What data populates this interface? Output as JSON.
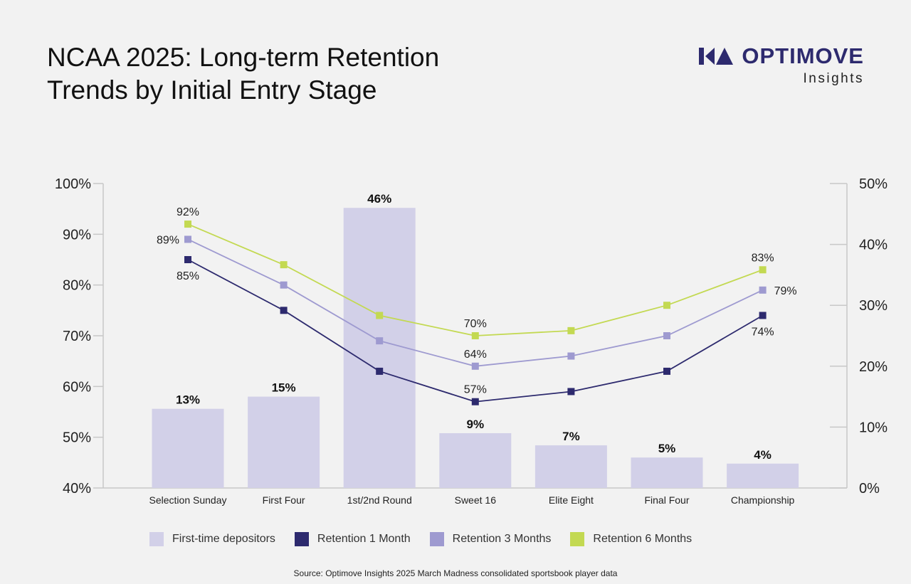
{
  "header": {
    "title_line1": "NCAA 2025: Long-term Retention",
    "title_line2": "Trends by Initial Entry Stage"
  },
  "logo": {
    "brand": "OPTIMOVE",
    "sub": "Insights"
  },
  "colors": {
    "bar": "#d2d0e8",
    "retention_1m": "#2d2a6e",
    "retention_3m": "#9e9ad0",
    "retention_6m": "#c3d952",
    "axis": "#c8c8c8"
  },
  "chart_data": {
    "type": "bar+line",
    "categories": [
      "Selection Sunday",
      "First Four",
      "1st/2nd Round",
      "Sweet 16",
      "Elite Eight",
      "Final Four",
      "Championship"
    ],
    "bars": {
      "name": "First-time depositors",
      "values": [
        13,
        15,
        46,
        9,
        7,
        5,
        4
      ],
      "labels": [
        "13%",
        "15%",
        "46%",
        "9%",
        "7%",
        "5%",
        "4%"
      ],
      "axis": "right"
    },
    "series": [
      {
        "name": "Retention 1 Month",
        "values": [
          85,
          75,
          63,
          57,
          59,
          63,
          74
        ],
        "axis": "left",
        "labels": [
          {
            "index": 0,
            "text": "85%",
            "pos": "below"
          },
          {
            "index": 3,
            "text": "57%",
            "pos": "above"
          },
          {
            "index": 6,
            "text": "74%",
            "pos": "below"
          }
        ]
      },
      {
        "name": "Retention 3 Months",
        "values": [
          89,
          80,
          69,
          64,
          66,
          70,
          79
        ],
        "axis": "left",
        "labels": [
          {
            "index": 0,
            "text": "89%",
            "pos": "left"
          },
          {
            "index": 3,
            "text": "64%",
            "pos": "above"
          },
          {
            "index": 6,
            "text": "79%",
            "pos": "right"
          }
        ]
      },
      {
        "name": "Retention 6 Months",
        "values": [
          92,
          84,
          74,
          70,
          71,
          76,
          83
        ],
        "axis": "left",
        "labels": [
          {
            "index": 0,
            "text": "92%",
            "pos": "above"
          },
          {
            "index": 3,
            "text": "70%",
            "pos": "above"
          },
          {
            "index": 6,
            "text": "83%",
            "pos": "above"
          }
        ]
      }
    ],
    "left_axis": {
      "range": [
        40,
        100
      ],
      "ticks": [
        100,
        90,
        80,
        70,
        60,
        50,
        40
      ],
      "tick_labels": [
        "100%",
        "90%",
        "80%",
        "70%",
        "60%",
        "50%",
        "40%"
      ]
    },
    "right_axis": {
      "range": [
        0,
        50
      ],
      "ticks": [
        50,
        40,
        30,
        20,
        10,
        0
      ],
      "tick_labels": [
        "50%",
        "40%",
        "30%",
        "20%",
        "10%",
        "0%"
      ]
    },
    "grid": false,
    "legend": "bottom"
  },
  "legend": [
    {
      "label": "First-time depositors",
      "color": "#d2d0e8"
    },
    {
      "label": "Retention 1 Month",
      "color": "#2d2a6e"
    },
    {
      "label": "Retention 3 Months",
      "color": "#9e9ad0"
    },
    {
      "label": "Retention 6 Months",
      "color": "#c3d952"
    }
  ],
  "footer": {
    "source": "Source: Optimove Insights 2025 March Madness consolidated sportsbook player data"
  }
}
